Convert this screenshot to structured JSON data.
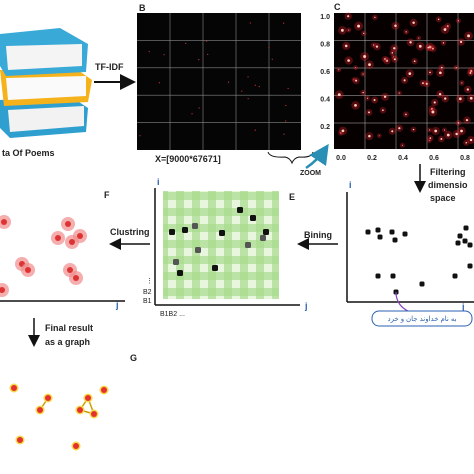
{
  "panel_a": {
    "caption": "ta Of Poems"
  },
  "arrows": {
    "tfidf": "TF-IDF",
    "zoom": "ZOOM",
    "filtering": [
      "Filtering",
      "dimensio",
      "space"
    ],
    "bining": "Bining",
    "clustring": "Clustring",
    "final": [
      "Final result",
      "as a graph"
    ]
  },
  "panel_b": {
    "letter": "B",
    "formula": "X=[9000*67671]"
  },
  "panel_c": {
    "letter": "C",
    "yticks": [
      "1.0",
      "0.8",
      "0.6",
      "0.4",
      "0.2"
    ],
    "xticks": [
      "0.0",
      "0.2",
      "0.4",
      "0.6",
      "0.8"
    ]
  },
  "panel_d": {
    "axis_i": "i",
    "axis_j": "j",
    "label": "به نام خداوند جان و خرد"
  },
  "panel_e": {
    "letter": "E",
    "axis_i": "i",
    "axis_j": "j",
    "row_labels": [
      "⋮",
      "B2",
      "B1"
    ],
    "col_labels": "B1B2 ..."
  },
  "panel_f": {
    "letter": "F",
    "axis_j": "j"
  },
  "panel_g": {
    "letter": "G"
  }
}
